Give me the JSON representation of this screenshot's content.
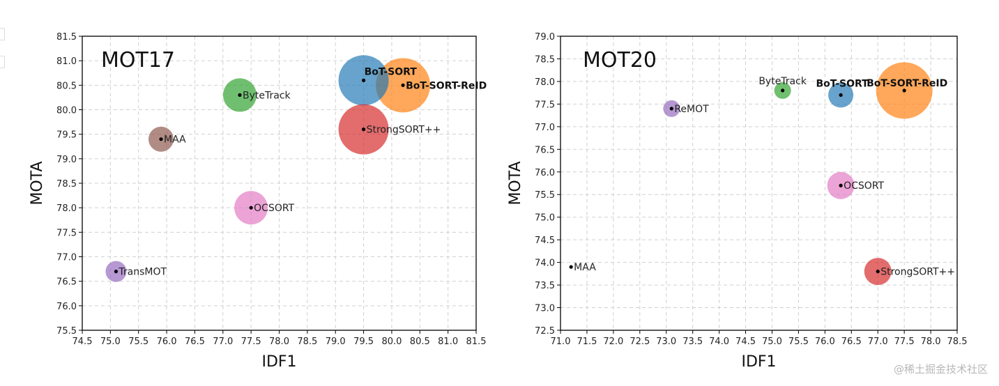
{
  "chart_data": [
    {
      "type": "scatter",
      "title": "MOT17",
      "xlabel": "IDF1",
      "ylabel": "MOTA",
      "xlim": [
        74.5,
        81.5
      ],
      "ylim": [
        75.5,
        81.5
      ],
      "xticks": [
        "74.5",
        "75.0",
        "75.5",
        "76.0",
        "76.5",
        "77.0",
        "77.5",
        "78.0",
        "78.5",
        "79.0",
        "79.5",
        "80.0",
        "80.5",
        "81.0",
        "81.5"
      ],
      "yticks": [
        "75.5",
        "76.0",
        "76.5",
        "77.0",
        "77.5",
        "78.0",
        "78.5",
        "79.0",
        "79.5",
        "80.0",
        "80.5",
        "81.0",
        "81.5"
      ],
      "grid": true,
      "points": [
        {
          "name": "TransMOT",
          "x": 75.1,
          "y": 76.7,
          "size": 1.0,
          "color": "#9467bd",
          "bold": false,
          "label_pos": "right"
        },
        {
          "name": "MAA",
          "x": 75.9,
          "y": 79.4,
          "size": 1.2,
          "color": "#8c564b",
          "bold": false,
          "label_pos": "right"
        },
        {
          "name": "ByteTrack",
          "x": 77.3,
          "y": 80.3,
          "size": 1.6,
          "color": "#2ca02c",
          "bold": false,
          "label_pos": "right"
        },
        {
          "name": "OCSORT",
          "x": 77.5,
          "y": 78.0,
          "size": 1.6,
          "color": "#e377c2",
          "bold": false,
          "label_pos": "right"
        },
        {
          "name": "BoT-SORT",
          "x": 79.5,
          "y": 80.6,
          "size": 2.4,
          "color": "#1f77b4",
          "bold": true,
          "label_pos": "right-up"
        },
        {
          "name": "StrongSORT++",
          "x": 79.5,
          "y": 79.6,
          "size": 2.4,
          "color": "#d62728",
          "bold": false,
          "label_pos": "right"
        },
        {
          "name": "BoT-SORT-ReID",
          "x": 80.2,
          "y": 80.5,
          "size": 2.6,
          "color": "#ff7f0e",
          "bold": true,
          "label_pos": "right"
        }
      ]
    },
    {
      "type": "scatter",
      "title": "MOT20",
      "xlabel": "IDF1",
      "ylabel": "MOTA",
      "xlim": [
        71.0,
        78.5
      ],
      "ylim": [
        72.5,
        79.0
      ],
      "xticks": [
        "71.0",
        "71.5",
        "72.0",
        "72.5",
        "73.0",
        "73.5",
        "74.0",
        "74.5",
        "75.0",
        "75.5",
        "76.0",
        "76.5",
        "77.0",
        "77.5",
        "78.0",
        "78.5"
      ],
      "yticks": [
        "72.5",
        "73.0",
        "73.5",
        "74.0",
        "74.5",
        "75.0",
        "75.5",
        "76.0",
        "76.5",
        "77.0",
        "77.5",
        "78.0",
        "78.5",
        "79.0"
      ],
      "grid": true,
      "points": [
        {
          "name": "MAA",
          "x": 71.2,
          "y": 73.9,
          "size": 0.0,
          "color": "#8c564b",
          "bold": false,
          "label_pos": "right"
        },
        {
          "name": "ReMOT",
          "x": 73.1,
          "y": 77.4,
          "size": 0.8,
          "color": "#9467bd",
          "bold": false,
          "label_pos": "right"
        },
        {
          "name": "ByteTrack",
          "x": 75.2,
          "y": 77.8,
          "size": 0.8,
          "color": "#2ca02c",
          "bold": false,
          "label_pos": "above"
        },
        {
          "name": "BoT-SORT",
          "x": 76.3,
          "y": 77.7,
          "size": 1.2,
          "color": "#1f77b4",
          "bold": true,
          "label_pos": "left-up"
        },
        {
          "name": "BoT-SORT-ReID",
          "x": 77.5,
          "y": 77.8,
          "size": 2.7,
          "color": "#ff7f0e",
          "bold": true,
          "label_pos": "center-up"
        },
        {
          "name": "OCSORT",
          "x": 76.3,
          "y": 75.7,
          "size": 1.3,
          "color": "#e377c2",
          "bold": false,
          "label_pos": "right"
        },
        {
          "name": "StrongSORT++",
          "x": 77.0,
          "y": 73.8,
          "size": 1.3,
          "color": "#d62728",
          "bold": false,
          "label_pos": "right"
        }
      ]
    }
  ],
  "watermark": "@稀土掘金技术社区"
}
